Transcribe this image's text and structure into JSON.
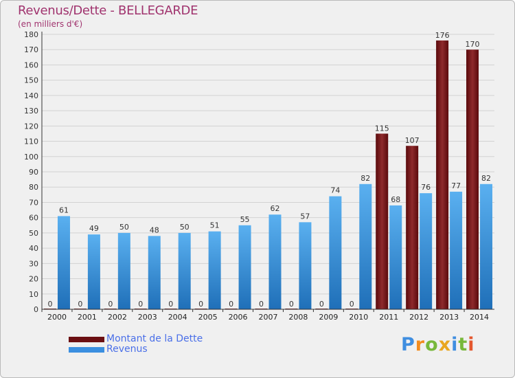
{
  "header": {
    "title": "Revenus/Dette - BELLEGARDE",
    "subtitle": "(en milliers d'€)"
  },
  "legend": {
    "items": [
      {
        "label": "Montant de la Dette",
        "color": "#6b0f12"
      },
      {
        "label": "Revenus",
        "color": "#3b8fe0"
      }
    ]
  },
  "logo": {
    "text": "Proxiti",
    "letters": [
      "P",
      "r",
      "o",
      "x",
      "i",
      "t",
      "i"
    ],
    "colors": [
      "#3f8ee0",
      "#f28c1f",
      "#78b83b",
      "#e9a61f",
      "#3f8ee0",
      "#78b83b",
      "#e4572e"
    ]
  },
  "chart_data": {
    "type": "bar",
    "title": "Revenus/Dette - BELLEGARDE",
    "subtitle": "(en milliers d'€)",
    "categories": [
      "2000",
      "2001",
      "2002",
      "2003",
      "2004",
      "2005",
      "2006",
      "2007",
      "2008",
      "2009",
      "2010",
      "2011",
      "2012",
      "2013",
      "2014"
    ],
    "series": [
      {
        "name": "Montant de la Dette",
        "color": "#7a1a1c",
        "values": [
          0,
          0,
          0,
          0,
          0,
          0,
          0,
          0,
          0,
          0,
          0,
          115,
          107,
          176,
          170
        ]
      },
      {
        "name": "Revenus",
        "color": "#3d93e2",
        "values": [
          61,
          49,
          50,
          48,
          50,
          51,
          55,
          62,
          57,
          74,
          82,
          68,
          76,
          77,
          82
        ]
      }
    ],
    "ylim": [
      0,
      180
    ],
    "yticks": [
      0,
      10,
      20,
      30,
      40,
      50,
      60,
      70,
      80,
      90,
      100,
      110,
      120,
      130,
      140,
      150,
      160,
      170,
      180
    ],
    "grid": true,
    "legend_position": "bottom-left"
  }
}
